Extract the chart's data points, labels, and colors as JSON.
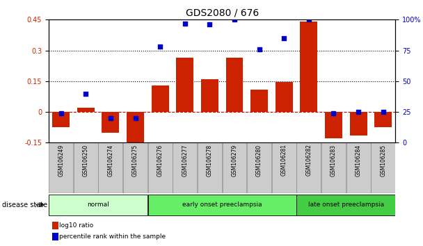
{
  "title": "GDS2080 / 676",
  "samples": [
    "GSM106249",
    "GSM106250",
    "GSM106274",
    "GSM106275",
    "GSM106276",
    "GSM106277",
    "GSM106278",
    "GSM106279",
    "GSM106280",
    "GSM106281",
    "GSM106282",
    "GSM106283",
    "GSM106284",
    "GSM106285"
  ],
  "log10_ratio": [
    -0.075,
    0.02,
    -0.1,
    -0.2,
    0.13,
    0.265,
    0.16,
    0.265,
    0.11,
    0.145,
    0.44,
    -0.13,
    -0.115,
    -0.075
  ],
  "percentile_rank": [
    24,
    40,
    20,
    20,
    78,
    97,
    96,
    100,
    76,
    85,
    100,
    24,
    25,
    25
  ],
  "groups": [
    {
      "label": "normal",
      "start": 0,
      "end": 4,
      "color": "#ccffcc"
    },
    {
      "label": "early onset preeclampsia",
      "start": 4,
      "end": 10,
      "color": "#66ee66"
    },
    {
      "label": "late onset preeclampsia",
      "start": 10,
      "end": 14,
      "color": "#44cc44"
    }
  ],
  "ylim_left": [
    -0.15,
    0.45
  ],
  "ylim_right": [
    0,
    100
  ],
  "yticks_left": [
    -0.15,
    0.0,
    0.15,
    0.3,
    0.45
  ],
  "yticks_right": [
    0,
    25,
    50,
    75,
    100
  ],
  "ytick_labels_left": [
    "-0.15",
    "0",
    "0.15",
    "0.3",
    "0.45"
  ],
  "ytick_labels_right": [
    "0",
    "25",
    "50",
    "75",
    "100%"
  ],
  "hlines": [
    0.15,
    0.3
  ],
  "bar_color": "#cc2200",
  "dot_color": "#0000cc",
  "zero_line_color": "#cc0000",
  "disease_state_label": "disease state",
  "legend_log10": "log10 ratio",
  "legend_percentile": "percentile rank within the sample",
  "title_fontsize": 10,
  "tick_fontsize": 7,
  "bar_width": 0.7,
  "dot_size": 25,
  "box_color": "#cccccc",
  "box_edge_color": "#888888"
}
